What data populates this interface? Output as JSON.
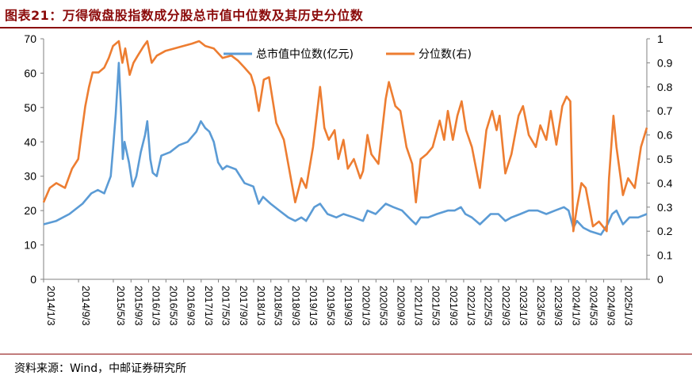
{
  "title": "图表21：万得微盘股指数成分股总市值中位数及其历史分位数",
  "source": "资料来源：Wind，中邮证券研究所",
  "colors": {
    "series1": "#5b9bd5",
    "series2": "#ed7d31",
    "title": "#8b0a0a"
  },
  "chart_data": {
    "type": "line",
    "x_ticks": [
      "2014/1/3",
      "2014/9/3",
      "2015/5/3",
      "2015/9/3",
      "2016/1/3",
      "2016/5/3",
      "2016/9/3",
      "2017/1/3",
      "2017/5/3",
      "2017/9/3",
      "2018/1/3",
      "2018/5/3",
      "2018/9/3",
      "2019/1/3",
      "2019/5/3",
      "2019/9/3",
      "2020/1/3",
      "2020/5/3",
      "2020/9/3",
      "2021/1/3",
      "2021/5/3",
      "2021/9/3",
      "2022/1/3",
      "2022/5/3",
      "2022/9/3",
      "2023/1/3",
      "2023/5/3",
      "2023/9/3",
      "2024/1/3",
      "2024/5/3",
      "2024/9/3",
      "2025/1/3"
    ],
    "x_range": [
      "2014-01-03",
      "2025-06-30"
    ],
    "y_left": {
      "min": 0,
      "max": 70,
      "ticks": [
        0,
        10,
        20,
        30,
        40,
        50,
        60,
        70
      ]
    },
    "y_right": {
      "min": 0,
      "max": 1,
      "ticks": [
        "0",
        "0.1",
        "0.2",
        "0.3",
        "0.4",
        "0.5",
        "0.6",
        "0.7",
        "0.8",
        "0.9",
        "1"
      ]
    },
    "legend_position": "top-right",
    "series": [
      {
        "name": "总市值中位数(亿元)",
        "axis": "left",
        "color": "#5b9bd5",
        "points": [
          [
            "2014-01-03",
            16
          ],
          [
            "2014-04-01",
            17
          ],
          [
            "2014-07-01",
            19
          ],
          [
            "2014-10-01",
            22
          ],
          [
            "2014-12-01",
            25
          ],
          [
            "2015-01-15",
            26
          ],
          [
            "2015-03-01",
            25
          ],
          [
            "2015-04-15",
            30
          ],
          [
            "2015-05-01",
            38
          ],
          [
            "2015-05-20",
            48
          ],
          [
            "2015-06-10",
            63
          ],
          [
            "2015-06-25",
            50
          ],
          [
            "2015-07-08",
            35
          ],
          [
            "2015-07-20",
            40
          ],
          [
            "2015-08-20",
            34
          ],
          [
            "2015-09-15",
            27
          ],
          [
            "2015-10-10",
            30
          ],
          [
            "2015-11-10",
            37
          ],
          [
            "2015-12-10",
            42
          ],
          [
            "2015-12-25",
            46
          ],
          [
            "2016-01-15",
            35
          ],
          [
            "2016-02-01",
            31
          ],
          [
            "2016-02-29",
            30
          ],
          [
            "2016-04-01",
            36
          ],
          [
            "2016-06-01",
            37
          ],
          [
            "2016-08-01",
            39
          ],
          [
            "2016-10-01",
            40
          ],
          [
            "2016-12-01",
            43
          ],
          [
            "2017-01-01",
            46
          ],
          [
            "2017-02-01",
            44
          ],
          [
            "2017-03-01",
            43
          ],
          [
            "2017-04-01",
            40
          ],
          [
            "2017-05-01",
            34
          ],
          [
            "2017-06-01",
            32
          ],
          [
            "2017-07-01",
            33
          ],
          [
            "2017-09-01",
            32
          ],
          [
            "2017-11-01",
            28
          ],
          [
            "2018-01-01",
            27
          ],
          [
            "2018-02-08",
            22
          ],
          [
            "2018-03-10",
            24
          ],
          [
            "2018-05-01",
            22
          ],
          [
            "2018-07-01",
            20
          ],
          [
            "2018-09-01",
            18
          ],
          [
            "2018-10-19",
            17
          ],
          [
            "2018-12-01",
            18
          ],
          [
            "2019-01-03",
            17
          ],
          [
            "2019-03-01",
            21
          ],
          [
            "2019-04-10",
            22
          ],
          [
            "2019-06-01",
            19
          ],
          [
            "2019-08-01",
            18
          ],
          [
            "2019-09-20",
            19
          ],
          [
            "2019-12-01",
            18
          ],
          [
            "2020-02-03",
            17
          ],
          [
            "2020-03-05",
            20
          ],
          [
            "2020-05-01",
            19
          ],
          [
            "2020-07-10",
            22
          ],
          [
            "2020-09-01",
            21
          ],
          [
            "2020-11-01",
            20
          ],
          [
            "2021-01-10",
            17
          ],
          [
            "2021-02-05",
            16
          ],
          [
            "2021-03-10",
            18
          ],
          [
            "2021-05-01",
            18
          ],
          [
            "2021-07-01",
            19
          ],
          [
            "2021-09-15",
            20
          ],
          [
            "2021-11-01",
            20
          ],
          [
            "2021-12-15",
            21
          ],
          [
            "2022-01-15",
            19
          ],
          [
            "2022-03-01",
            18
          ],
          [
            "2022-04-26",
            16
          ],
          [
            "2022-07-10",
            19
          ],
          [
            "2022-09-01",
            19
          ],
          [
            "2022-10-20",
            17
          ],
          [
            "2022-12-01",
            18
          ],
          [
            "2023-02-01",
            19
          ],
          [
            "2023-04-01",
            20
          ],
          [
            "2023-06-01",
            20
          ],
          [
            "2023-08-01",
            19
          ],
          [
            "2023-10-01",
            20
          ],
          [
            "2023-12-01",
            21
          ],
          [
            "2024-01-03",
            20
          ],
          [
            "2024-02-05",
            15
          ],
          [
            "2024-03-01",
            17
          ],
          [
            "2024-04-15",
            15
          ],
          [
            "2024-06-01",
            14
          ],
          [
            "2024-08-15",
            13
          ],
          [
            "2024-09-30",
            16
          ],
          [
            "2024-11-01",
            19
          ],
          [
            "2024-12-01",
            20
          ],
          [
            "2025-01-15",
            16
          ],
          [
            "2025-03-01",
            18
          ],
          [
            "2025-05-01",
            18
          ],
          [
            "2025-06-30",
            19
          ]
        ]
      },
      {
        "name": "分位数(右)",
        "axis": "right",
        "color": "#ed7d31",
        "points": [
          [
            "2014-01-03",
            0.32
          ],
          [
            "2014-02-15",
            0.38
          ],
          [
            "2014-04-01",
            0.4
          ],
          [
            "2014-06-01",
            0.38
          ],
          [
            "2014-07-20",
            0.46
          ],
          [
            "2014-09-01",
            0.5
          ],
          [
            "2014-09-20",
            0.59
          ],
          [
            "2014-10-20",
            0.72
          ],
          [
            "2014-11-15",
            0.8
          ],
          [
            "2014-12-10",
            0.86
          ],
          [
            "2015-01-20",
            0.86
          ],
          [
            "2015-03-01",
            0.88
          ],
          [
            "2015-04-01",
            0.92
          ],
          [
            "2015-05-01",
            0.97
          ],
          [
            "2015-06-10",
            0.99
          ],
          [
            "2015-07-05",
            0.9
          ],
          [
            "2015-07-25",
            0.96
          ],
          [
            "2015-08-25",
            0.85
          ],
          [
            "2015-09-20",
            0.9
          ],
          [
            "2015-10-20",
            0.93
          ],
          [
            "2015-12-01",
            0.97
          ],
          [
            "2015-12-25",
            0.99
          ],
          [
            "2016-01-25",
            0.9
          ],
          [
            "2016-03-01",
            0.93
          ],
          [
            "2016-05-01",
            0.95
          ],
          [
            "2016-07-01",
            0.96
          ],
          [
            "2016-09-01",
            0.97
          ],
          [
            "2016-11-01",
            0.98
          ],
          [
            "2016-12-20",
            0.99
          ],
          [
            "2017-02-01",
            0.97
          ],
          [
            "2017-04-01",
            0.96
          ],
          [
            "2017-06-01",
            0.92
          ],
          [
            "2017-08-01",
            0.93
          ],
          [
            "2017-09-15",
            0.91
          ],
          [
            "2017-11-01",
            0.88
          ],
          [
            "2017-12-15",
            0.85
          ],
          [
            "2018-01-10",
            0.8
          ],
          [
            "2018-02-08",
            0.7
          ],
          [
            "2018-03-15",
            0.83
          ],
          [
            "2018-04-20",
            0.84
          ],
          [
            "2018-06-10",
            0.65
          ],
          [
            "2018-08-01",
            0.58
          ],
          [
            "2018-10-19",
            0.32
          ],
          [
            "2018-12-01",
            0.42
          ],
          [
            "2019-01-03",
            0.38
          ],
          [
            "2019-02-20",
            0.55
          ],
          [
            "2019-04-10",
            0.8
          ],
          [
            "2019-05-10",
            0.63
          ],
          [
            "2019-06-10",
            0.58
          ],
          [
            "2019-07-20",
            0.62
          ],
          [
            "2019-08-15",
            0.5
          ],
          [
            "2019-09-20",
            0.58
          ],
          [
            "2019-10-20",
            0.46
          ],
          [
            "2019-12-01",
            0.5
          ],
          [
            "2020-01-15",
            0.42
          ],
          [
            "2020-02-03",
            0.45
          ],
          [
            "2020-03-05",
            0.6
          ],
          [
            "2020-04-01",
            0.52
          ],
          [
            "2020-05-20",
            0.48
          ],
          [
            "2020-07-10",
            0.75
          ],
          [
            "2020-08-01",
            0.82
          ],
          [
            "2020-09-15",
            0.72
          ],
          [
            "2020-10-20",
            0.7
          ],
          [
            "2020-12-01",
            0.55
          ],
          [
            "2021-01-10",
            0.48
          ],
          [
            "2021-02-05",
            0.32
          ],
          [
            "2021-03-10",
            0.5
          ],
          [
            "2021-04-20",
            0.52
          ],
          [
            "2021-06-01",
            0.55
          ],
          [
            "2021-07-20",
            0.66
          ],
          [
            "2021-08-20",
            0.58
          ],
          [
            "2021-09-15",
            0.7
          ],
          [
            "2021-10-20",
            0.58
          ],
          [
            "2021-11-20",
            0.68
          ],
          [
            "2021-12-20",
            0.74
          ],
          [
            "2022-01-20",
            0.62
          ],
          [
            "2022-03-01",
            0.55
          ],
          [
            "2022-04-26",
            0.38
          ],
          [
            "2022-06-10",
            0.62
          ],
          [
            "2022-07-20",
            0.7
          ],
          [
            "2022-08-20",
            0.62
          ],
          [
            "2022-09-10",
            0.68
          ],
          [
            "2022-10-20",
            0.44
          ],
          [
            "2022-12-01",
            0.52
          ],
          [
            "2023-01-20",
            0.68
          ],
          [
            "2023-02-20",
            0.72
          ],
          [
            "2023-04-01",
            0.6
          ],
          [
            "2023-05-20",
            0.55
          ],
          [
            "2023-06-20",
            0.64
          ],
          [
            "2023-08-01",
            0.58
          ],
          [
            "2023-09-01",
            0.7
          ],
          [
            "2023-10-10",
            0.56
          ],
          [
            "2023-11-20",
            0.72
          ],
          [
            "2023-12-20",
            0.76
          ],
          [
            "2024-01-15",
            0.74
          ],
          [
            "2024-02-05",
            0.2
          ],
          [
            "2024-03-01",
            0.3
          ],
          [
            "2024-04-01",
            0.4
          ],
          [
            "2024-05-01",
            0.38
          ],
          [
            "2024-06-20",
            0.22
          ],
          [
            "2024-08-01",
            0.24
          ],
          [
            "2024-09-24",
            0.2
          ],
          [
            "2024-10-10",
            0.42
          ],
          [
            "2024-11-10",
            0.68
          ],
          [
            "2024-12-01",
            0.55
          ],
          [
            "2025-01-15",
            0.35
          ],
          [
            "2025-02-20",
            0.42
          ],
          [
            "2025-04-07",
            0.38
          ],
          [
            "2025-05-20",
            0.55
          ],
          [
            "2025-06-30",
            0.63
          ]
        ]
      }
    ]
  }
}
